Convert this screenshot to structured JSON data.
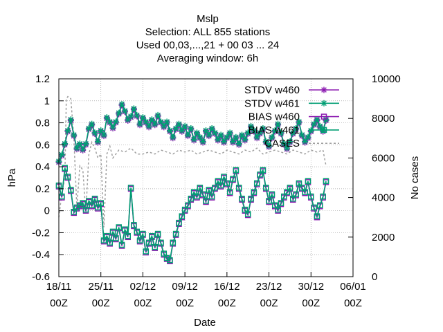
{
  "chart_data": {
    "type": "line",
    "title_lines": [
      "Mslp",
      "Selection: ALL    855 stations",
      "Used  00,03,...,21  + 00 03 ... 24",
      "Averaging window:  6h"
    ],
    "xlabel": "Date",
    "ylabel": "hPa",
    "y2label": "No cases",
    "ylim": [
      -0.6,
      1.2
    ],
    "yticks": [
      "-0.6",
      "-0.4",
      "-0.2",
      "0",
      "0.2",
      "0.4",
      "0.6",
      "0.8",
      "1",
      "1.2"
    ],
    "y2lim": [
      0,
      10000
    ],
    "y2ticks": [
      "0",
      "2000",
      "4000",
      "6000",
      "8000",
      "10000"
    ],
    "xlim_days": [
      0,
      49
    ],
    "xticks": [
      {
        "day": 0,
        "line1": "18/11",
        "line2": "00Z"
      },
      {
        "day": 7,
        "line1": "25/11",
        "line2": "00Z"
      },
      {
        "day": 14,
        "line1": "02/12",
        "line2": "00Z"
      },
      {
        "day": 21,
        "line1": "09/12",
        "line2": "00Z"
      },
      {
        "day": 28,
        "line1": "16/12",
        "line2": "00Z"
      },
      {
        "day": 35,
        "line1": "23/12",
        "line2": "00Z"
      },
      {
        "day": 42,
        "line1": "30/12",
        "line2": "00Z"
      },
      {
        "day": 49,
        "line1": "06/01",
        "line2": "00Z"
      }
    ],
    "grid": true,
    "legend_position": "top-right",
    "series": [
      {
        "name": "STDV w460",
        "color": "#8b1ab0",
        "marker": "star",
        "axis": "y1",
        "x": [
          0,
          0.5,
          1,
          1.5,
          2,
          2.5,
          3,
          3.5,
          4,
          4.5,
          5,
          5.5,
          6,
          6.5,
          7,
          7.5,
          8,
          8.5,
          9,
          9.5,
          10,
          10.5,
          11,
          11.5,
          12,
          12.5,
          13,
          13.5,
          14,
          14.5,
          15,
          15.5,
          16,
          16.5,
          17,
          17.5,
          18,
          18.5,
          19,
          19.5,
          20,
          20.5,
          21,
          21.5,
          22,
          22.5,
          23,
          23.5,
          24,
          24.5,
          25,
          25.5,
          26,
          26.5,
          27,
          27.5,
          28,
          28.5,
          29,
          29.5,
          30,
          30.5,
          31,
          31.5,
          32,
          32.5,
          33,
          33.5,
          34,
          34.5,
          35,
          35.5,
          36,
          36.5,
          37,
          37.5,
          38,
          38.5,
          39,
          39.5,
          40,
          40.5,
          41,
          41.5,
          42,
          42.5,
          43,
          43.5,
          44,
          44.5
        ],
        "y": [
          0.44,
          0.5,
          0.6,
          0.72,
          0.82,
          0.68,
          0.56,
          0.6,
          0.55,
          0.6,
          0.74,
          0.78,
          0.7,
          0.62,
          0.72,
          0.68,
          0.84,
          0.8,
          0.75,
          0.8,
          0.88,
          0.96,
          0.9,
          0.82,
          0.85,
          0.92,
          0.86,
          0.78,
          0.84,
          0.8,
          0.76,
          0.82,
          0.78,
          0.86,
          0.8,
          0.76,
          0.8,
          0.72,
          0.66,
          0.74,
          0.78,
          0.72,
          0.76,
          0.68,
          0.74,
          0.64,
          0.7,
          0.66,
          0.62,
          0.72,
          0.68,
          0.74,
          0.7,
          0.64,
          0.68,
          0.62,
          0.66,
          0.7,
          0.62,
          0.66,
          0.6,
          0.68,
          0.64,
          0.7,
          0.76,
          0.72,
          0.66,
          0.7,
          0.74,
          0.62,
          0.58,
          0.66,
          0.72,
          0.78,
          0.7,
          0.6,
          0.56,
          0.62,
          0.7,
          0.74,
          0.8,
          0.68,
          0.62,
          0.66,
          0.72,
          0.78,
          0.82,
          0.76,
          0.72,
          0.82
        ]
      },
      {
        "name": "STDV w461",
        "color": "#009e73",
        "marker": "star",
        "axis": "y1",
        "x": [
          0,
          0.5,
          1,
          1.5,
          2,
          2.5,
          3,
          3.5,
          4,
          4.5,
          5,
          5.5,
          6,
          6.5,
          7,
          7.5,
          8,
          8.5,
          9,
          9.5,
          10,
          10.5,
          11,
          11.5,
          12,
          12.5,
          13,
          13.5,
          14,
          14.5,
          15,
          15.5,
          16,
          16.5,
          17,
          17.5,
          18,
          18.5,
          19,
          19.5,
          20,
          20.5,
          21,
          21.5,
          22,
          22.5,
          23,
          23.5,
          24,
          24.5,
          25,
          25.5,
          26,
          26.5,
          27,
          27.5,
          28,
          28.5,
          29,
          29.5,
          30,
          30.5,
          31,
          31.5,
          32,
          32.5,
          33,
          33.5,
          34,
          34.5,
          35,
          35.5,
          36,
          36.5,
          37,
          37.5,
          38,
          38.5,
          39,
          39.5,
          40,
          40.5,
          41,
          41.5,
          42,
          42.5,
          43,
          43.5,
          44,
          44.5
        ],
        "y": [
          0.45,
          0.51,
          0.61,
          0.73,
          0.83,
          0.69,
          0.57,
          0.61,
          0.56,
          0.61,
          0.75,
          0.79,
          0.71,
          0.63,
          0.73,
          0.69,
          0.85,
          0.81,
          0.76,
          0.81,
          0.89,
          0.97,
          0.91,
          0.83,
          0.86,
          0.93,
          0.87,
          0.79,
          0.85,
          0.81,
          0.77,
          0.83,
          0.79,
          0.87,
          0.81,
          0.77,
          0.81,
          0.73,
          0.67,
          0.75,
          0.79,
          0.73,
          0.77,
          0.69,
          0.75,
          0.65,
          0.71,
          0.67,
          0.63,
          0.73,
          0.69,
          0.75,
          0.71,
          0.65,
          0.69,
          0.63,
          0.67,
          0.71,
          0.63,
          0.67,
          0.61,
          0.69,
          0.65,
          0.71,
          0.77,
          0.73,
          0.67,
          0.71,
          0.75,
          0.63,
          0.59,
          0.67,
          0.73,
          0.79,
          0.71,
          0.61,
          0.57,
          0.63,
          0.71,
          0.75,
          0.81,
          0.69,
          0.63,
          0.67,
          0.73,
          0.79,
          0.83,
          0.77,
          0.73,
          0.83
        ]
      },
      {
        "name": "BIAS w460",
        "color": "#8b1ab0",
        "marker": "square",
        "axis": "y1",
        "x": [
          0,
          0.5,
          1,
          1.5,
          2,
          2.5,
          3,
          3.5,
          4,
          4.5,
          5,
          5.5,
          6,
          6.5,
          7,
          7.5,
          8,
          8.5,
          9,
          9.5,
          10,
          10.5,
          11,
          11.5,
          12,
          12.5,
          13,
          13.5,
          14,
          14.5,
          15,
          15.5,
          16,
          16.5,
          17,
          17.5,
          18,
          18.5,
          19,
          19.5,
          20,
          20.5,
          21,
          21.5,
          22,
          22.5,
          23,
          23.5,
          24,
          24.5,
          25,
          25.5,
          26,
          26.5,
          27,
          27.5,
          28,
          28.5,
          29,
          29.5,
          30,
          30.5,
          31,
          31.5,
          32,
          32.5,
          33,
          33.5,
          34,
          34.5,
          35,
          35.5,
          36,
          36.5,
          37,
          37.5,
          38,
          38.5,
          39,
          39.5,
          40,
          40.5,
          41,
          41.5,
          42,
          42.5,
          43,
          43.5,
          44,
          44.5
        ],
        "y": [
          0.22,
          0.12,
          0.38,
          0.3,
          0.18,
          -0.02,
          0.02,
          0.04,
          0.06,
          0.0,
          0.08,
          0.04,
          0.1,
          0.02,
          0.06,
          -0.28,
          -0.24,
          -0.3,
          -0.2,
          -0.26,
          -0.16,
          -0.32,
          -0.18,
          -0.24,
          0.2,
          -0.14,
          -0.2,
          -0.28,
          -0.22,
          -0.38,
          -0.3,
          -0.24,
          -0.34,
          -0.22,
          -0.3,
          -0.4,
          -0.44,
          -0.46,
          -0.3,
          -0.22,
          -0.12,
          -0.06,
          0.0,
          0.04,
          0.1,
          0.16,
          0.12,
          0.2,
          0.14,
          0.08,
          0.18,
          0.12,
          0.2,
          0.26,
          0.22,
          0.3,
          0.24,
          0.16,
          0.28,
          0.36,
          0.2,
          0.1,
          0.0,
          -0.04,
          0.1,
          0.16,
          0.24,
          0.32,
          0.36,
          0.2,
          0.08,
          0.14,
          0.04,
          0.0,
          0.06,
          0.12,
          0.16,
          0.2,
          0.1,
          0.14,
          0.24,
          0.2,
          0.16,
          0.26,
          0.12,
          0.02,
          -0.06,
          0.04,
          0.12,
          0.26
        ]
      },
      {
        "name": "BIAS w461",
        "color": "#009e73",
        "marker": "square",
        "axis": "y1",
        "x": [
          0,
          0.5,
          1,
          1.5,
          2,
          2.5,
          3,
          3.5,
          4,
          4.5,
          5,
          5.5,
          6,
          6.5,
          7,
          7.5,
          8,
          8.5,
          9,
          9.5,
          10,
          10.5,
          11,
          11.5,
          12,
          12.5,
          13,
          13.5,
          14,
          14.5,
          15,
          15.5,
          16,
          16.5,
          17,
          17.5,
          18,
          18.5,
          19,
          19.5,
          20,
          20.5,
          21,
          21.5,
          22,
          22.5,
          23,
          23.5,
          24,
          24.5,
          25,
          25.5,
          26,
          26.5,
          27,
          27.5,
          28,
          28.5,
          29,
          29.5,
          30,
          30.5,
          31,
          31.5,
          32,
          32.5,
          33,
          33.5,
          34,
          34.5,
          35,
          35.5,
          36,
          36.5,
          37,
          37.5,
          38,
          38.5,
          39,
          39.5,
          40,
          40.5,
          41,
          41.5,
          42,
          42.5,
          43,
          43.5,
          44,
          44.5
        ],
        "y": [
          0.23,
          0.13,
          0.39,
          0.31,
          0.19,
          -0.01,
          0.03,
          0.05,
          0.07,
          0.01,
          0.09,
          0.05,
          0.11,
          0.03,
          0.07,
          -0.27,
          -0.23,
          -0.29,
          -0.19,
          -0.25,
          -0.15,
          -0.31,
          -0.17,
          -0.23,
          0.21,
          -0.13,
          -0.19,
          -0.27,
          -0.21,
          -0.37,
          -0.29,
          -0.23,
          -0.33,
          -0.21,
          -0.29,
          -0.39,
          -0.43,
          -0.45,
          -0.29,
          -0.21,
          -0.11,
          -0.05,
          0.01,
          0.05,
          0.11,
          0.17,
          0.13,
          0.21,
          0.15,
          0.09,
          0.19,
          0.13,
          0.21,
          0.27,
          0.23,
          0.31,
          0.25,
          0.17,
          0.29,
          0.37,
          0.21,
          0.11,
          0.01,
          -0.03,
          0.11,
          0.17,
          0.25,
          0.33,
          0.37,
          0.21,
          0.09,
          0.15,
          0.05,
          0.01,
          0.07,
          0.13,
          0.17,
          0.21,
          0.11,
          0.15,
          0.25,
          0.21,
          0.17,
          0.27,
          0.13,
          0.03,
          -0.05,
          0.05,
          0.13,
          0.27
        ]
      },
      {
        "name": "CASES",
        "color": "#a0a0a0",
        "marker": "none",
        "axis": "y2",
        "dashed": true,
        "x": [
          0,
          0.5,
          1,
          1.25,
          1.5,
          2,
          2.5,
          3,
          3.5,
          4,
          4.5,
          5,
          5.5,
          6,
          6.5,
          7,
          7.5,
          8,
          8.5,
          9,
          10,
          11,
          12,
          13,
          14,
          15,
          16,
          17,
          18,
          19,
          20,
          21,
          22,
          23,
          24,
          25,
          26,
          27,
          28,
          29,
          30,
          31,
          32,
          33,
          34,
          35,
          36,
          37,
          38,
          39,
          40,
          41,
          42,
          43,
          44,
          44.5
        ],
        "y": [
          3000,
          4200,
          5000,
          9000,
          9100,
          9000,
          7000,
          3500,
          5600,
          5400,
          3200,
          6200,
          6800,
          6500,
          6000,
          6200,
          2500,
          6200,
          6600,
          6000,
          6400,
          6300,
          6500,
          6200,
          6200,
          6300,
          6200,
          6400,
          6300,
          6200,
          6400,
          6300,
          6400,
          6200,
          6300,
          6400,
          6300,
          6200,
          6400,
          6300,
          6200,
          6400,
          6300,
          6500,
          6200,
          6300,
          6400,
          6300,
          6200,
          6400,
          6300,
          6200,
          6400,
          6300,
          6400,
          5600
        ]
      }
    ]
  }
}
